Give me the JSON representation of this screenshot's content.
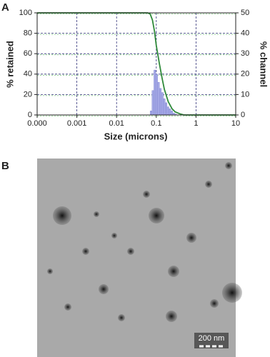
{
  "panels": {
    "a": "A",
    "b": "B"
  },
  "chart_data": {
    "type": "line",
    "x_label": "Size (microns)",
    "y_label": "% retained",
    "y2_label": "% channel",
    "xscale": "log",
    "xlim": [
      0.0001,
      10
    ],
    "xticks": [
      {
        "value": 0.0001,
        "label": "0.000"
      },
      0.001,
      0.01,
      0.1,
      1,
      10
    ],
    "ylim": [
      0,
      100
    ],
    "yticks": [
      0,
      20,
      40,
      60,
      80,
      100
    ],
    "y2lim": [
      0,
      50
    ],
    "y2ticks": [
      0,
      10,
      20,
      30,
      40,
      50
    ],
    "grid": true,
    "series": [
      {
        "type": "line",
        "color": "#2f8a3a",
        "x": [
          0.0001,
          0.06,
          0.07,
          0.08,
          0.09,
          0.1,
          0.12,
          0.14,
          0.16,
          0.2,
          0.25,
          0.3,
          0.4,
          0.5,
          10
        ],
        "values": [
          100,
          100,
          99,
          93,
          82,
          68,
          50,
          36,
          25,
          13,
          6,
          3,
          1,
          0,
          0
        ]
      },
      {
        "type": "histogram",
        "axis": "y2",
        "color": "#a4a8e6",
        "bins": [
          0.07,
          0.078,
          0.087,
          0.097,
          0.108,
          0.12,
          0.134,
          0.15,
          0.167,
          0.186,
          0.208,
          0.232,
          0.259,
          0.289,
          0.322
        ],
        "values": [
          2,
          12,
          22,
          20,
          16,
          13,
          11,
          8,
          6,
          4,
          3,
          2,
          1,
          0.5
        ]
      }
    ]
  },
  "image": {
    "scale_bar": "200 nm"
  }
}
